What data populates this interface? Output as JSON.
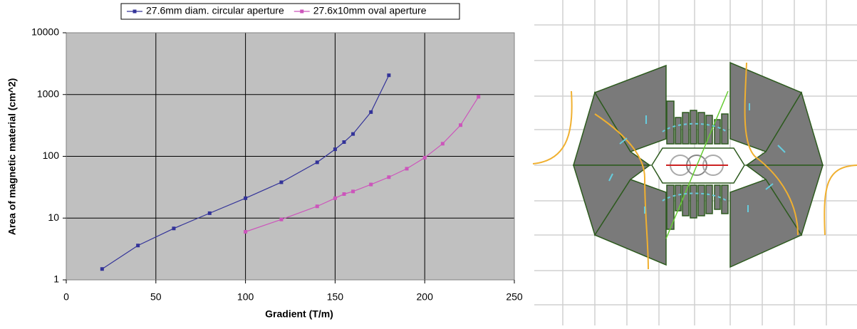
{
  "chart_data": {
    "type": "line",
    "x_label": "Gradient (T/m)",
    "y_label": "Area of magnetic material (cm^2)",
    "log_y": true,
    "grid": true,
    "legend": "top",
    "xlim": [
      0,
      250
    ],
    "xticks": [
      0,
      50,
      100,
      150,
      200,
      250
    ],
    "ylim": [
      1,
      10000
    ],
    "yticks": [
      1,
      10,
      100,
      1000,
      10000
    ],
    "series": [
      {
        "name": "27.6mm diam. circular aperture",
        "color": "#333399",
        "x": [
          20,
          40,
          60,
          80,
          100,
          120,
          140,
          150,
          155,
          160,
          170,
          180
        ],
        "values": [
          1.5,
          3.6,
          6.8,
          12,
          21,
          38,
          80,
          130,
          170,
          230,
          520,
          2050
        ]
      },
      {
        "name": "27.6x10mm oval aperture",
        "color": "#cc55bb",
        "x": [
          100,
          120,
          140,
          150,
          155,
          160,
          170,
          180,
          190,
          200,
          210,
          220,
          230
        ],
        "values": [
          6,
          9.5,
          15.5,
          21,
          24.5,
          27,
          35,
          46,
          63,
          95,
          160,
          320,
          920
        ]
      }
    ]
  }
}
